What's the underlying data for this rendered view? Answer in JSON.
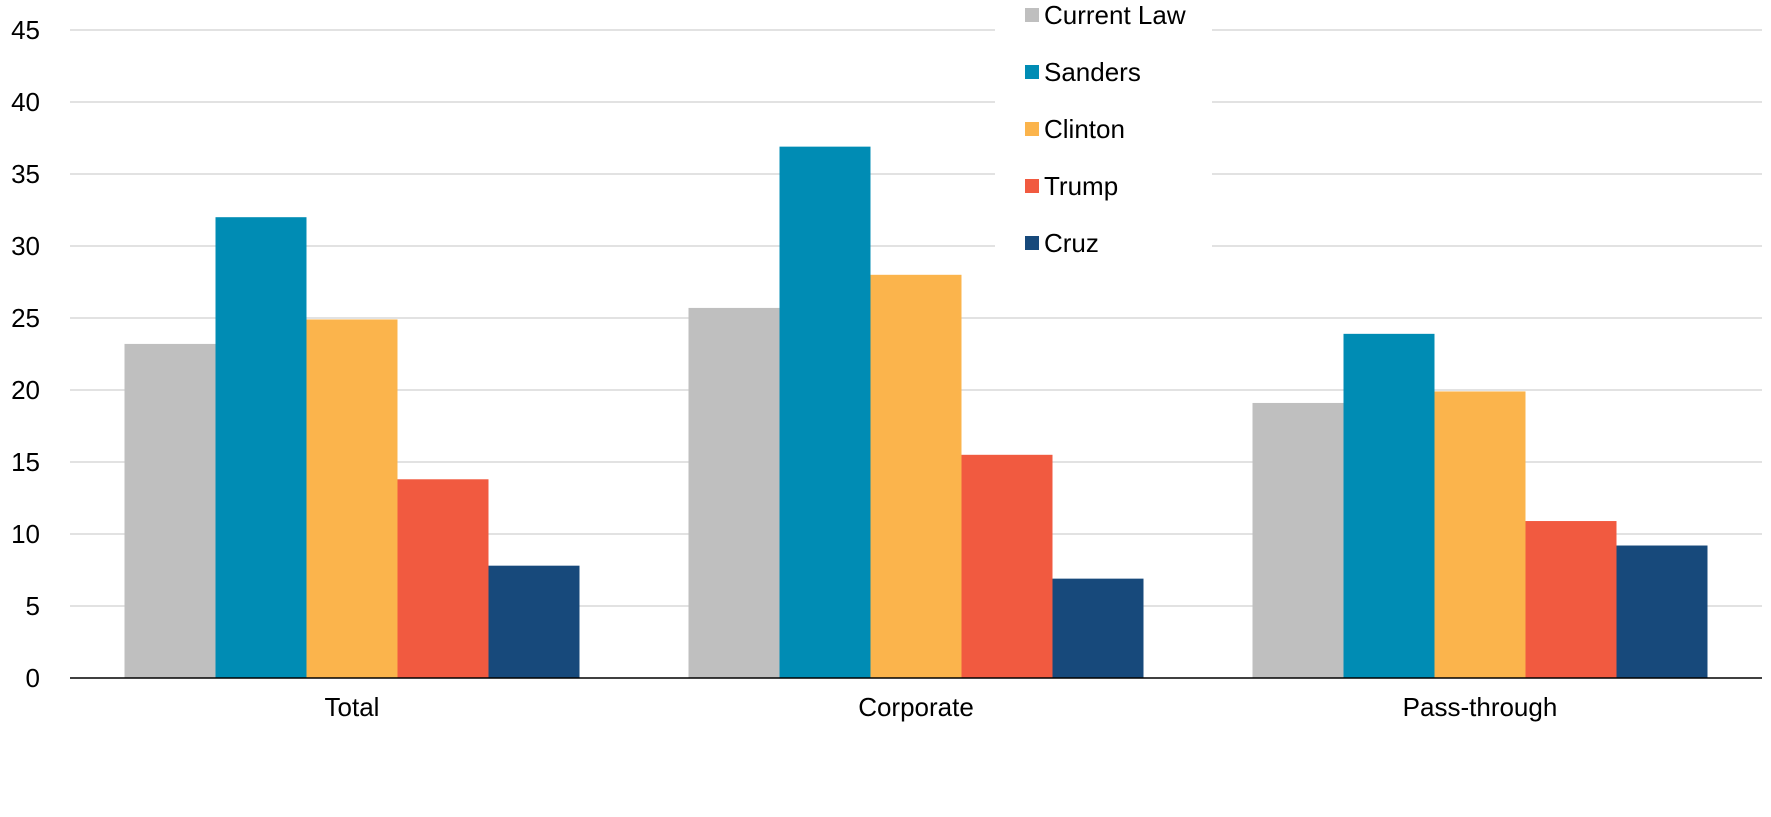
{
  "chart_data": {
    "type": "bar",
    "categories": [
      "Total",
      "Corporate",
      "Pass-through"
    ],
    "series": [
      {
        "name": "Current Law",
        "color": "#bfbfbf",
        "values": [
          23.2,
          25.7,
          19.1
        ]
      },
      {
        "name": "Sanders",
        "color": "#008cb4",
        "values": [
          32.0,
          36.9,
          23.9
        ]
      },
      {
        "name": "Clinton",
        "color": "#fbb44c",
        "values": [
          24.9,
          28.0,
          19.9
        ]
      },
      {
        "name": "Trump",
        "color": "#f15a40",
        "values": [
          13.8,
          15.5,
          10.9
        ]
      },
      {
        "name": "Cruz",
        "color": "#17497b",
        "values": [
          7.8,
          6.9,
          9.2
        ]
      }
    ],
    "yticks": [
      "0",
      "5",
      "10",
      "15",
      "20",
      "25",
      "30",
      "35",
      "40",
      "45"
    ],
    "ylim": [
      0,
      45
    ],
    "grid": true,
    "legend": "top-right"
  }
}
